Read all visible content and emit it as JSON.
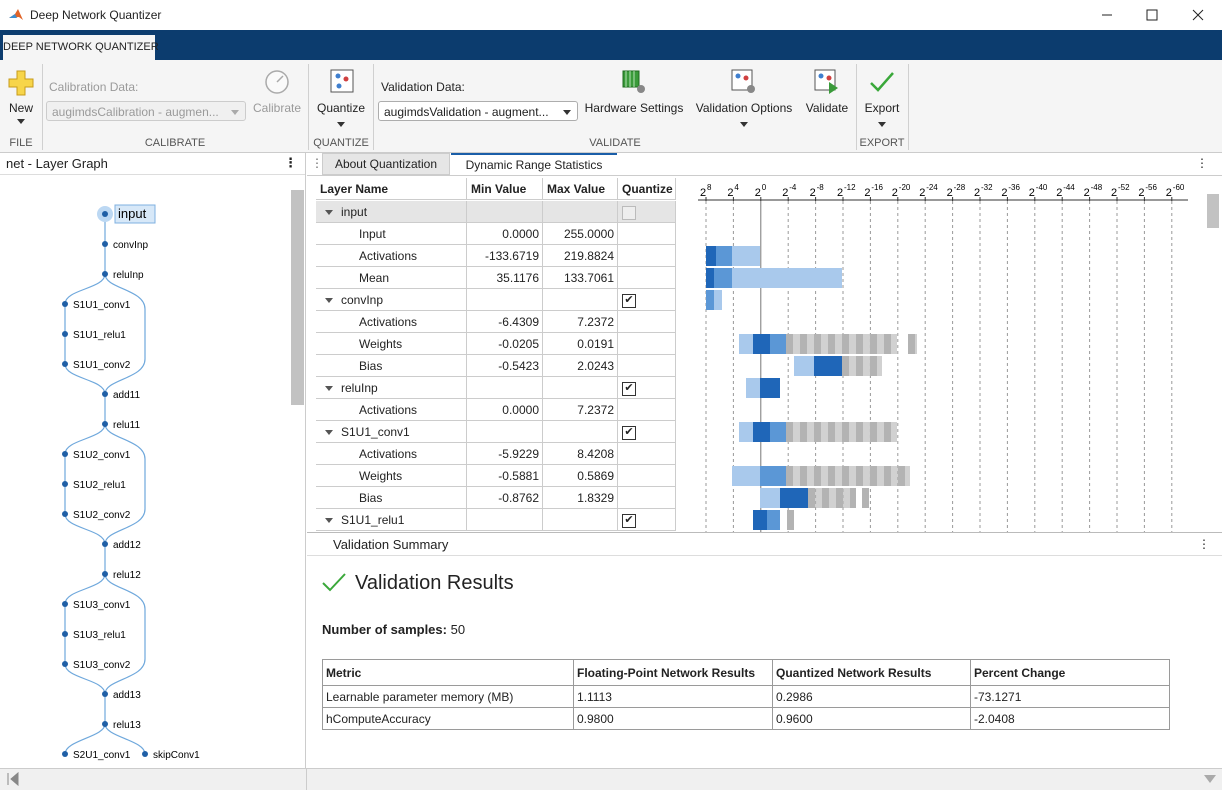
{
  "window": {
    "title": "Deep Network Quantizer"
  },
  "app_tab": "DEEP NETWORK QUANTIZER",
  "toolstrip": {
    "new": "New",
    "file_section": "FILE",
    "calibration_data_label": "Calibration Data:",
    "calibration_data_value": "augimdsCalibration - augmen...",
    "calibrate": "Calibrate",
    "calibrate_section": "CALIBRATE",
    "quantize": "Quantize",
    "quantize_section": "QUANTIZE",
    "validation_data_label": "Validation Data:",
    "validation_data_value": "augimdsValidation - augment...",
    "hardware_settings": "Hardware Settings",
    "validation_options": "Validation Options",
    "validate": "Validate",
    "validate_section": "VALIDATE",
    "export": "Export",
    "export_section": "EXPORT"
  },
  "layer_graph": {
    "title": "net - Layer Graph",
    "nodes": [
      "input",
      "convInp",
      "reluInp",
      "S1U1_conv1",
      "S1U1_relu1",
      "S1U1_conv2",
      "add11",
      "relu11",
      "S1U2_conv1",
      "S1U2_relu1",
      "S1U2_conv2",
      "add12",
      "relu12",
      "S1U3_conv1",
      "S1U3_relu1",
      "S1U3_conv2",
      "add13",
      "relu13",
      "S2U1_conv1",
      "skipConv1"
    ]
  },
  "tabs": [
    "About Quantization",
    "Dynamic Range Statistics"
  ],
  "statistics_table": {
    "columns": [
      "Layer Name",
      "Min Value",
      "Max Value",
      "Quantize"
    ],
    "rows": [
      {
        "name": "input",
        "group": true,
        "quantize": false
      },
      {
        "name": "Input",
        "min": "0.0000",
        "max": "255.0000"
      },
      {
        "name": "Activations",
        "min": "-133.6719",
        "max": "219.8824"
      },
      {
        "name": "Mean",
        "min": "35.1176",
        "max": "133.7061"
      },
      {
        "name": "convInp",
        "group": true,
        "quantize": true
      },
      {
        "name": "Activations",
        "min": "-6.4309",
        "max": "7.2372"
      },
      {
        "name": "Weights",
        "min": "-0.0205",
        "max": "0.0191"
      },
      {
        "name": "Bias",
        "min": "-0.5423",
        "max": "2.0243"
      },
      {
        "name": "reluInp",
        "group": true,
        "quantize": true
      },
      {
        "name": "Activations",
        "min": "0.0000",
        "max": "7.2372"
      },
      {
        "name": "S1U1_conv1",
        "group": true,
        "quantize": true
      },
      {
        "name": "Activations",
        "min": "-5.9229",
        "max": "8.4208"
      },
      {
        "name": "Weights",
        "min": "-0.5881",
        "max": "0.5869"
      },
      {
        "name": "Bias",
        "min": "-0.8762",
        "max": "1.8329"
      },
      {
        "name": "S1U1_relu1",
        "group": true,
        "quantize": true
      }
    ]
  },
  "histogram": {
    "base": "2",
    "exponents": [
      "8",
      "4",
      "0",
      "-4",
      "-8",
      "-12",
      "-16",
      "-20",
      "-24",
      "-28",
      "-32",
      "-36",
      "-40",
      "-44",
      "-48",
      "-52",
      "-56",
      "-60"
    ]
  },
  "validation_summary": {
    "title": "Validation Summary",
    "heading": "Validation Results",
    "samples_label": "Number of samples:",
    "samples": 50,
    "table": {
      "columns": [
        "Metric",
        "Floating-Point Network Results",
        "Quantized Network Results",
        "Percent Change"
      ],
      "rows": [
        [
          "Learnable parameter memory (MB)",
          "1.1113",
          "0.2986",
          "-73.1271"
        ],
        [
          "hComputeAccuracy",
          "0.9800",
          "0.9600",
          "-2.0408"
        ]
      ]
    }
  }
}
